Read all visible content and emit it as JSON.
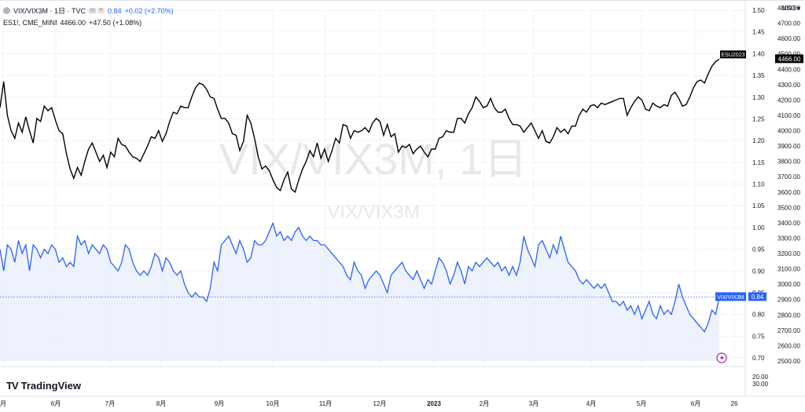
{
  "legend": {
    "main_symbol": "VIX/VIX3M · 1日 · TVC",
    "main_value": "0.84",
    "main_change": "+0.02 (+2.70%)",
    "compare_symbol": "ES1!, CME_MINI",
    "compare_value": "4466.00",
    "compare_change": "+47.50 (+1.08%)"
  },
  "watermark": {
    "title": "VIX/VIX3M, 1日",
    "subtitle": "VIX/VIX3M"
  },
  "currency": "USD",
  "brand": "TradingView",
  "colors": {
    "es_line": "#000000",
    "ratio_line": "#2962ff",
    "ratio_fill": "#e8eefc",
    "grid": "#f0f3fa"
  },
  "chart_data": {
    "type": "line",
    "x_ticks": [
      "月",
      "6月",
      "7月",
      "8月",
      "9月",
      "10月",
      "11月",
      "12月",
      "2023",
      "2月",
      "3月",
      "4月",
      "5月",
      "6月",
      "26"
    ],
    "ratio_axis": {
      "ticks": [
        "1.50",
        "1.45",
        "1.40",
        "1.35",
        "1.30",
        "1.25",
        "1.20",
        "1.15",
        "1.10",
        "1.05",
        "1.00",
        "0.95",
        "0.90",
        "0.85",
        "0.80",
        "0.75",
        "0.70"
      ],
      "range": [
        0.7,
        1.5
      ]
    },
    "es_axis": {
      "ticks": [
        "4800.00",
        "4700.00",
        "4600.00",
        "4500.00",
        "4400.00",
        "4300.00",
        "4200.00",
        "4100.00",
        "4000.00",
        "3900.00",
        "3800.00",
        "3700.00",
        "3600.00",
        "3500.00",
        "3400.00",
        "3300.00",
        "3200.00",
        "3100.00",
        "3000.00",
        "2900.00",
        "2800.00",
        "2700.00",
        "2600.00",
        "2500.00"
      ],
      "range": [
        2500,
        4800
      ]
    },
    "volume_axis": {
      "ticks": [
        "20.00",
        "30.00"
      ]
    },
    "series": [
      {
        "name": "ESU2023",
        "label_value": "4466.00",
        "values": [
          4150,
          4320,
          4100,
          4000,
          3950,
          4050,
          3990,
          4090,
          4000,
          3920,
          4080,
          4060,
          4160,
          4130,
          4150,
          4070,
          4000,
          3980,
          3850,
          3750,
          3690,
          3760,
          3710,
          3800,
          3880,
          3920,
          3860,
          3800,
          3840,
          3760,
          3860,
          3830,
          3950,
          3910,
          3900,
          3860,
          3830,
          3820,
          3800,
          3850,
          3900,
          3960,
          3950,
          4000,
          3930,
          3980,
          4060,
          4120,
          4110,
          4160,
          4150,
          4150,
          4220,
          4280,
          4310,
          4300,
          4270,
          4220,
          4210,
          4140,
          4080,
          4080,
          4050,
          3980,
          3970,
          3870,
          3930,
          4100,
          4050,
          3950,
          3830,
          3750,
          3770,
          3740,
          3680,
          3630,
          3610,
          3680,
          3730,
          3620,
          3600,
          3680,
          3750,
          3800,
          3870,
          3830,
          3920,
          3820,
          3880,
          3800,
          3870,
          3950,
          3920,
          4040,
          4030,
          3950,
          4000,
          3990,
          4000,
          4020,
          3990,
          4050,
          4080,
          4060,
          3970,
          4040,
          3960,
          3980,
          3860,
          3900,
          3890,
          3910,
          3850,
          3880,
          3900,
          3860,
          3830,
          3880,
          3880,
          3950,
          3960,
          4000,
          3990,
          3990,
          4080,
          4080,
          4050,
          4110,
          4150,
          4220,
          4190,
          4150,
          4160,
          4210,
          4150,
          4120,
          4120,
          4140,
          4080,
          4040,
          4040,
          4030,
          3990,
          4020,
          4050,
          4000,
          3950,
          4000,
          3930,
          3920,
          3960,
          4020,
          3990,
          4010,
          3980,
          4030,
          4030,
          4100,
          4140,
          4120,
          4160,
          4170,
          4150,
          4180,
          4170,
          4180,
          4190,
          4200,
          4210,
          4210,
          4100,
          4150,
          4190,
          4220,
          4200,
          4140,
          4130,
          4180,
          4160,
          4150,
          4170,
          4160,
          4230,
          4250,
          4210,
          4160,
          4170,
          4220,
          4280,
          4320,
          4330,
          4310,
          4370,
          4420,
          4450,
          4466
        ]
      },
      {
        "name": "VIX/VIX3M",
        "label_value": "0.84",
        "values": [
          0.95,
          0.9,
          0.96,
          0.95,
          0.92,
          0.97,
          0.94,
          0.96,
          0.9,
          0.96,
          0.95,
          0.93,
          0.95,
          0.94,
          0.96,
          0.95,
          0.92,
          0.93,
          0.91,
          0.92,
          0.91,
          0.98,
          0.96,
          0.97,
          0.94,
          0.96,
          0.95,
          0.94,
          0.96,
          0.95,
          0.92,
          0.91,
          0.9,
          0.92,
          0.96,
          0.95,
          0.92,
          0.9,
          0.89,
          0.9,
          0.89,
          0.91,
          0.94,
          0.93,
          0.9,
          0.93,
          0.92,
          0.9,
          0.89,
          0.9,
          0.87,
          0.85,
          0.84,
          0.85,
          0.84,
          0.84,
          0.83,
          0.86,
          0.92,
          0.9,
          0.96,
          0.97,
          0.98,
          0.96,
          0.94,
          0.97,
          0.95,
          0.92,
          0.93,
          0.97,
          0.96,
          0.96,
          0.97,
          0.99,
          1.01,
          0.98,
          0.99,
          0.97,
          0.98,
          0.97,
          0.99,
          1.0,
          0.98,
          0.97,
          0.98,
          0.97,
          0.97,
          0.96,
          0.96,
          0.95,
          0.94,
          0.93,
          0.92,
          0.91,
          0.89,
          0.88,
          0.92,
          0.9,
          0.89,
          0.86,
          0.88,
          0.89,
          0.9,
          0.89,
          0.87,
          0.85,
          0.89,
          0.9,
          0.91,
          0.92,
          0.9,
          0.89,
          0.88,
          0.9,
          0.88,
          0.86,
          0.88,
          0.87,
          0.9,
          0.93,
          0.92,
          0.9,
          0.87,
          0.89,
          0.92,
          0.9,
          0.87,
          0.91,
          0.9,
          0.92,
          0.91,
          0.92,
          0.93,
          0.92,
          0.91,
          0.92,
          0.9,
          0.91,
          0.89,
          0.91,
          0.89,
          0.92,
          0.98,
          0.95,
          0.93,
          0.91,
          0.96,
          0.97,
          0.95,
          0.93,
          0.96,
          0.94,
          0.98,
          0.95,
          0.92,
          0.91,
          0.9,
          0.88,
          0.87,
          0.88,
          0.87,
          0.86,
          0.87,
          0.86,
          0.87,
          0.85,
          0.83,
          0.83,
          0.82,
          0.83,
          0.81,
          0.82,
          0.8,
          0.82,
          0.79,
          0.81,
          0.83,
          0.8,
          0.79,
          0.82,
          0.8,
          0.81,
          0.8,
          0.83,
          0.87,
          0.84,
          0.82,
          0.8,
          0.79,
          0.78,
          0.77,
          0.76,
          0.78,
          0.81,
          0.8,
          0.84
        ]
      }
    ]
  }
}
